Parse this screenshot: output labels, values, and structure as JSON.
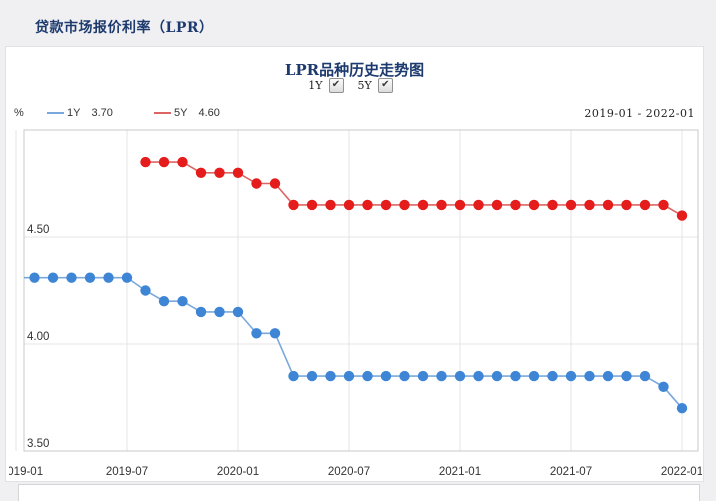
{
  "page_title": "贷款市场报价利率（LPR）",
  "chart": {
    "title": "LPR品种历史走势图",
    "controls": [
      {
        "label": "1Y",
        "checked": true
      },
      {
        "label": "5Y",
        "checked": true
      }
    ],
    "unit": "%",
    "legend": [
      {
        "name": "1Y",
        "value": "3.70",
        "color": "#79a9dc"
      },
      {
        "name": "5Y",
        "value": "4.60",
        "color": "#dd6464"
      }
    ],
    "date_range": "2019-01 - 2022-01",
    "colors": {
      "accent_navy": "#1d3a6e",
      "blue_point": "#3e86d5",
      "blue_line": "#79a9dc",
      "red_point": "#e51c1c",
      "red_line": "#dd6464",
      "grid": "#e4e4e4",
      "plot_border": "#c8c8c8",
      "tick_text": "#333333"
    },
    "chart_data": {
      "type": "line",
      "x": [
        "2019-01",
        "2019-02",
        "2019-03",
        "2019-04",
        "2019-05",
        "2019-06",
        "2019-07",
        "2019-08",
        "2019-09",
        "2019-10",
        "2019-11",
        "2019-12",
        "2020-01",
        "2020-02",
        "2020-03",
        "2020-04",
        "2020-05",
        "2020-06",
        "2020-07",
        "2020-08",
        "2020-09",
        "2020-10",
        "2020-11",
        "2020-12",
        "2021-01",
        "2021-02",
        "2021-03",
        "2021-04",
        "2021-05",
        "2021-06",
        "2021-07",
        "2021-08",
        "2021-09",
        "2021-10",
        "2021-11",
        "2021-12",
        "2022-01"
      ],
      "series": [
        {
          "name": "1Y",
          "values": [
            4.31,
            4.31,
            4.31,
            4.31,
            4.31,
            4.31,
            4.31,
            4.25,
            4.2,
            4.2,
            4.15,
            4.15,
            4.15,
            4.05,
            4.05,
            3.85,
            3.85,
            3.85,
            3.85,
            3.85,
            3.85,
            3.85,
            3.85,
            3.85,
            3.85,
            3.85,
            3.85,
            3.85,
            3.85,
            3.85,
            3.85,
            3.85,
            3.85,
            3.85,
            3.85,
            3.8,
            3.7
          ]
        },
        {
          "name": "5Y",
          "values": [
            null,
            null,
            null,
            null,
            null,
            null,
            null,
            4.85,
            4.85,
            4.85,
            4.8,
            4.8,
            4.8,
            4.75,
            4.75,
            4.65,
            4.65,
            4.65,
            4.65,
            4.65,
            4.65,
            4.65,
            4.65,
            4.65,
            4.65,
            4.65,
            4.65,
            4.65,
            4.65,
            4.65,
            4.65,
            4.65,
            4.65,
            4.65,
            4.65,
            4.65,
            4.6
          ]
        }
      ],
      "ylabel": "%",
      "ylim": [
        3.5,
        5.0
      ],
      "yticks": [
        3.5,
        4.0,
        4.5
      ],
      "ytick_labels": [
        "3.50",
        "4.00",
        "4.50"
      ],
      "xtick_indices": [
        0,
        6,
        12,
        18,
        24,
        30,
        36
      ],
      "xtick_labels": [
        "2019-01",
        "2019-07",
        "2020-01",
        "2020-07",
        "2021-01",
        "2021-07",
        "2022-01"
      ],
      "grid": true,
      "legend_position": "top-left"
    }
  }
}
